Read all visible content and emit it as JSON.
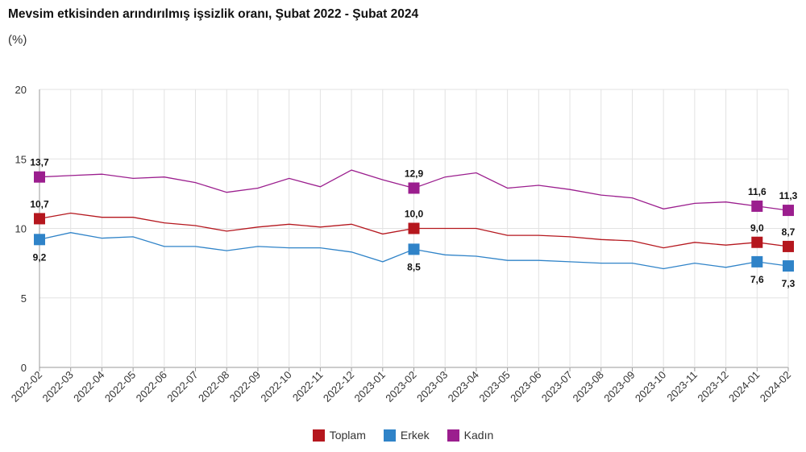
{
  "chart_data": {
    "type": "line",
    "title": "Mevsim etkisinden arındırılmış işsizlik oranı, Şubat 2022 - Şubat 2024",
    "subtitle": "(%)",
    "ylim": [
      0,
      20
    ],
    "yticks": [
      0,
      5,
      10,
      15,
      20
    ],
    "grid": true,
    "legend_position": "bottom",
    "categories": [
      "2022-02",
      "2022-03",
      "2022-04",
      "2022-05",
      "2022-06",
      "2022-07",
      "2022-08",
      "2022-09",
      "2022-10",
      "2022-11",
      "2022-12",
      "2023-01",
      "2023-02",
      "2023-03",
      "2023-04",
      "2023-05",
      "2023-06",
      "2023-07",
      "2023-08",
      "2023-09",
      "2023-10",
      "2023-11",
      "2023-12",
      "2024-01",
      "2024-02"
    ],
    "labeled_indices": [
      0,
      12,
      23,
      24
    ],
    "series": [
      {
        "name": "Toplam",
        "color": "#b5171e",
        "values": [
          10.7,
          11.1,
          10.8,
          10.8,
          10.4,
          10.2,
          9.8,
          10.1,
          10.3,
          10.1,
          10.3,
          9.6,
          10.0,
          10.0,
          10.0,
          9.5,
          9.5,
          9.4,
          9.2,
          9.1,
          8.6,
          9.0,
          8.8,
          9.0,
          8.7
        ]
      },
      {
        "name": "Erkek",
        "color": "#2f83c8",
        "values": [
          9.2,
          9.7,
          9.3,
          9.4,
          8.7,
          8.7,
          8.4,
          8.7,
          8.6,
          8.6,
          8.3,
          7.6,
          8.5,
          8.1,
          8.0,
          7.7,
          7.7,
          7.6,
          7.5,
          7.5,
          7.1,
          7.5,
          7.2,
          7.6,
          7.3
        ]
      },
      {
        "name": "Kadın",
        "color": "#9b1e8e",
        "values": [
          13.7,
          13.8,
          13.9,
          13.6,
          13.7,
          13.3,
          12.6,
          12.9,
          13.6,
          13.0,
          14.2,
          13.5,
          12.9,
          13.7,
          14.0,
          12.9,
          13.1,
          12.8,
          12.4,
          12.2,
          11.4,
          11.8,
          11.9,
          11.6,
          11.3
        ]
      }
    ]
  }
}
